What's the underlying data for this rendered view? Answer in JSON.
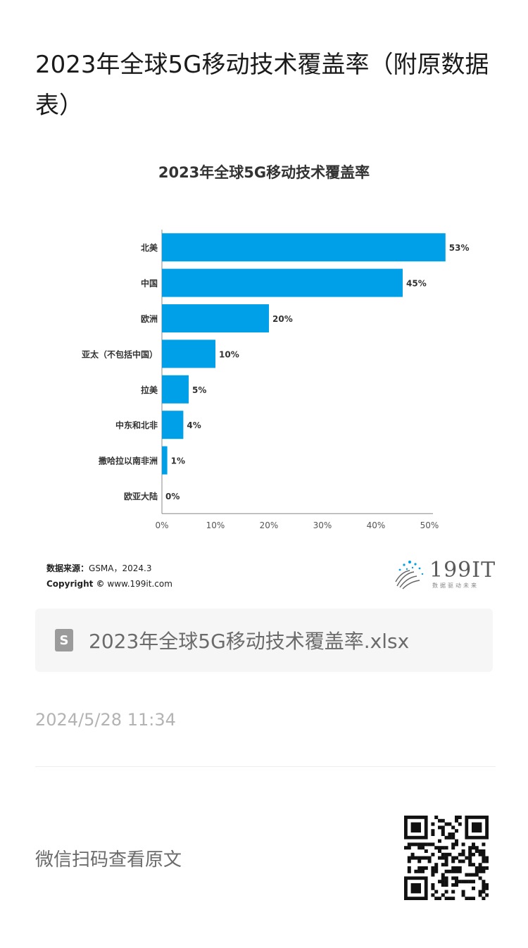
{
  "article": {
    "title": "2023年全球5G移动技术覆盖率（附原数据表）"
  },
  "chart_data": {
    "type": "bar",
    "orientation": "horizontal",
    "title": "2023年全球5G移动技术覆盖率",
    "categories": [
      "北美",
      "中国",
      "欧洲",
      "亚太（不包括中国）",
      "拉美",
      "中东和北非",
      "撒哈拉以南非洲",
      "欧亚大陆"
    ],
    "values": [
      53,
      45,
      20,
      10,
      5,
      4,
      1,
      0
    ],
    "value_labels": [
      "53%",
      "45%",
      "20%",
      "10%",
      "5%",
      "4%",
      "1%",
      "0%"
    ],
    "xlim": [
      0,
      50
    ],
    "xticks": [
      "0%",
      "10%",
      "20%",
      "30%",
      "40%",
      "50%"
    ],
    "xlabel": "",
    "ylabel": "",
    "grid": false,
    "bar_color": "#00a0e9"
  },
  "source": {
    "label": "数据来源：",
    "value": "GSMA，2024.3",
    "copyright_label": "Copyright ©",
    "copyright_value": "www.199it.com"
  },
  "logo": {
    "text": "199IT",
    "tagline": "数据驱动未来"
  },
  "attachment": {
    "icon": "document-icon",
    "filename": "2023年全球5G移动技术覆盖率.xlsx"
  },
  "meta": {
    "timestamp": "2024/5/28 11:34"
  },
  "footer": {
    "scan_text": "微信扫码查看原文"
  }
}
